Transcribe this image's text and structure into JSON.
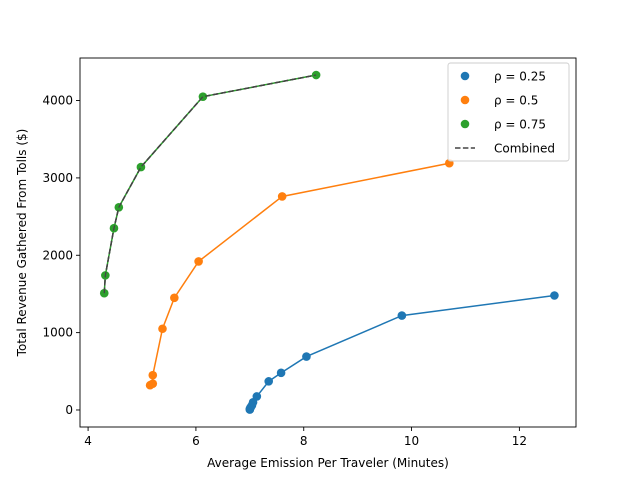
{
  "chart_data": {
    "type": "scatter",
    "title": "",
    "xlabel": "Average Emission Per Traveler (Minutes)",
    "ylabel": "Total Revenue Gathered From Tolls ($)",
    "xlim": [
      3.85,
      13.05
    ],
    "ylim": [
      -220,
      4550
    ],
    "xticks": [
      4,
      6,
      8,
      10,
      12
    ],
    "yticks": [
      0,
      1000,
      2000,
      3000,
      4000
    ],
    "grid": false,
    "legend_position": "top-right",
    "series": [
      {
        "name": "ρ = 0.25",
        "color": "#1f77b4",
        "points": [
          [
            7.0,
            5
          ],
          [
            7.0,
            15
          ],
          [
            7.01,
            25
          ],
          [
            7.02,
            40
          ],
          [
            7.04,
            60
          ],
          [
            7.06,
            100
          ],
          [
            7.13,
            175
          ],
          [
            7.35,
            370
          ],
          [
            7.58,
            480
          ],
          [
            8.05,
            690
          ],
          [
            9.82,
            1220
          ],
          [
            12.65,
            1480
          ]
        ]
      },
      {
        "name": "ρ = 0.5",
        "color": "#ff7f0e",
        "points": [
          [
            5.15,
            320
          ],
          [
            5.2,
            340
          ],
          [
            5.2,
            450
          ],
          [
            5.38,
            1050
          ],
          [
            5.6,
            1450
          ],
          [
            6.05,
            1920
          ],
          [
            7.6,
            2760
          ],
          [
            10.7,
            3190
          ]
        ]
      },
      {
        "name": "ρ = 0.75",
        "color": "#2ca02c",
        "points": [
          [
            4.3,
            1510
          ],
          [
            4.32,
            1740
          ],
          [
            4.48,
            2350
          ],
          [
            4.57,
            2620
          ],
          [
            4.98,
            3140
          ],
          [
            6.13,
            4050
          ],
          [
            8.23,
            4330
          ]
        ]
      }
    ],
    "combined": {
      "name": "Combined",
      "color": "#444444",
      "style": "dashed",
      "points": [
        [
          4.3,
          1510
        ],
        [
          4.32,
          1740
        ],
        [
          4.48,
          2350
        ],
        [
          4.57,
          2620
        ],
        [
          4.98,
          3140
        ],
        [
          6.13,
          4050
        ],
        [
          8.23,
          4330
        ]
      ]
    }
  }
}
